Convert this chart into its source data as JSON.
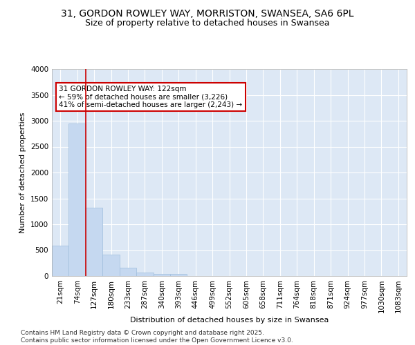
{
  "title_line1": "31, GORDON ROWLEY WAY, MORRISTON, SWANSEA, SA6 6PL",
  "title_line2": "Size of property relative to detached houses in Swansea",
  "xlabel": "Distribution of detached houses by size in Swansea",
  "ylabel": "Number of detached properties",
  "categories": [
    "21sqm",
    "74sqm",
    "127sqm",
    "180sqm",
    "233sqm",
    "287sqm",
    "340sqm",
    "393sqm",
    "446sqm",
    "499sqm",
    "552sqm",
    "605sqm",
    "658sqm",
    "711sqm",
    "764sqm",
    "818sqm",
    "871sqm",
    "924sqm",
    "977sqm",
    "1030sqm",
    "1083sqm"
  ],
  "values": [
    590,
    2950,
    1320,
    415,
    155,
    70,
    45,
    40,
    0,
    0,
    0,
    0,
    0,
    0,
    0,
    0,
    0,
    0,
    0,
    0,
    0
  ],
  "bar_color": "#c5d8f0",
  "bar_edge_color": "#a0bedd",
  "background_color": "#dde8f5",
  "grid_color": "#ffffff",
  "vline_color": "#cc0000",
  "vline_pos": 1.5,
  "annotation_text": "31 GORDON ROWLEY WAY: 122sqm\n← 59% of detached houses are smaller (3,226)\n41% of semi-detached houses are larger (2,243) →",
  "annotation_box_edgecolor": "#cc0000",
  "ylim": [
    0,
    4000
  ],
  "yticks": [
    0,
    500,
    1000,
    1500,
    2000,
    2500,
    3000,
    3500,
    4000
  ],
  "footer_text": "Contains HM Land Registry data © Crown copyright and database right 2025.\nContains public sector information licensed under the Open Government Licence v3.0.",
  "title_fontsize": 10,
  "subtitle_fontsize": 9,
  "axis_label_fontsize": 8,
  "tick_fontsize": 7.5,
  "annotation_fontsize": 7.5,
  "footer_fontsize": 6.5
}
